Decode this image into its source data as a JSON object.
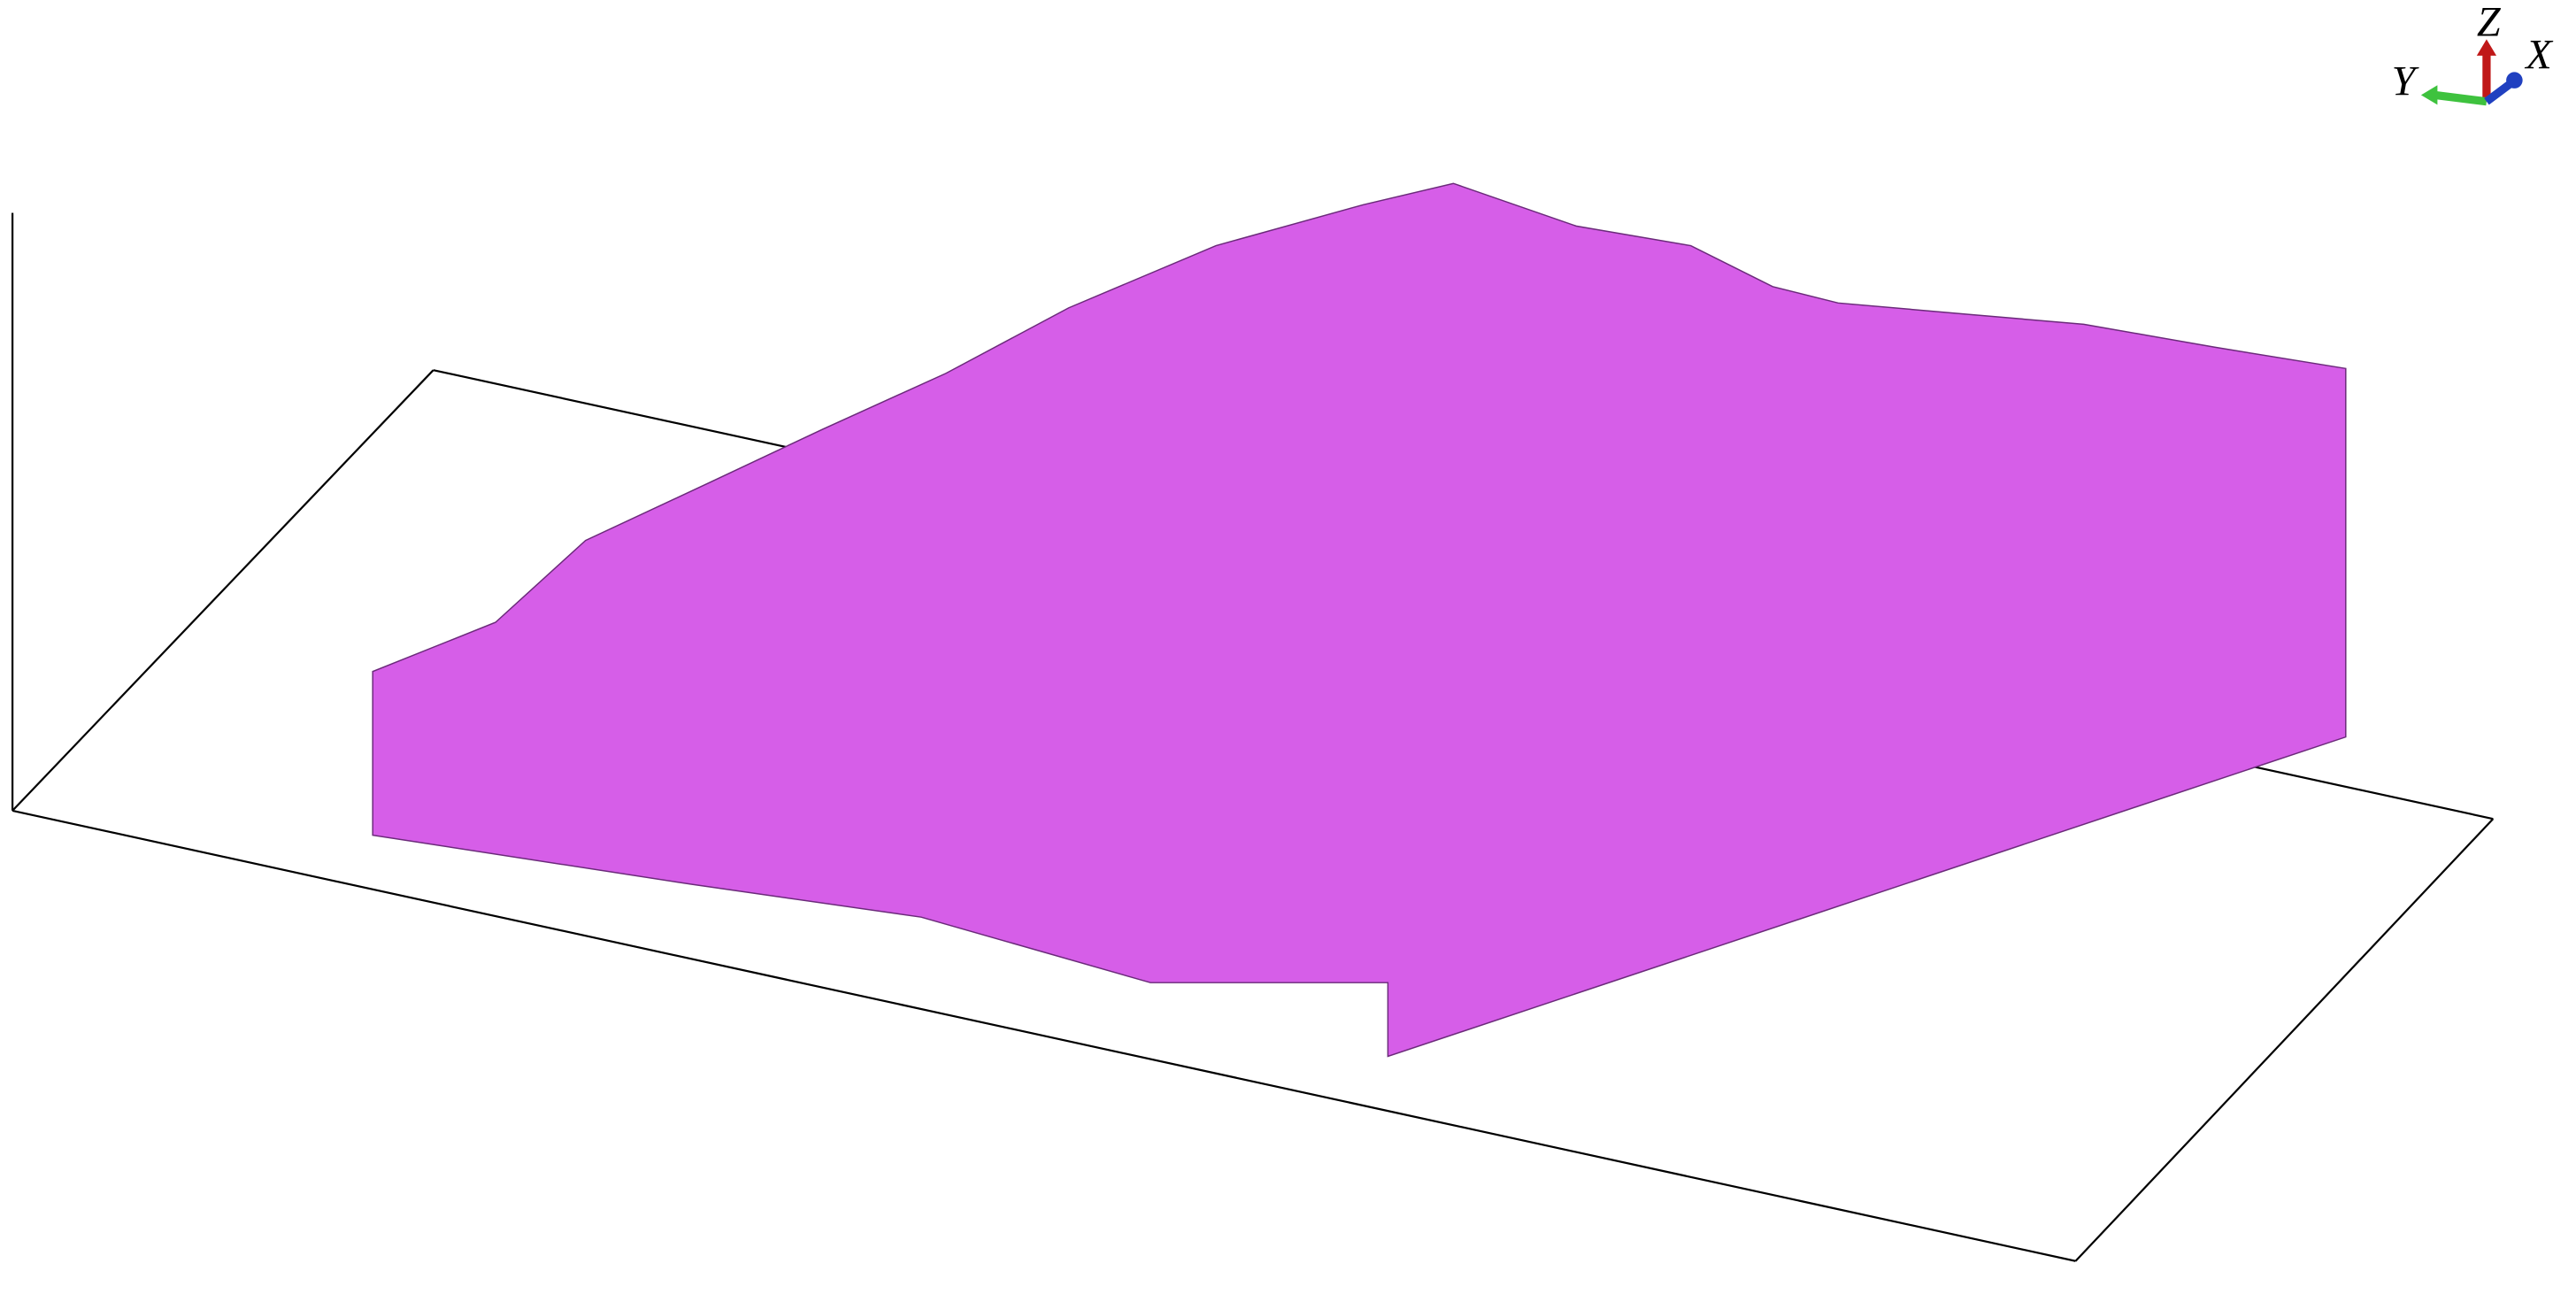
{
  "axis_triad": {
    "z": "Z",
    "x": "X",
    "y": "Y"
  }
}
